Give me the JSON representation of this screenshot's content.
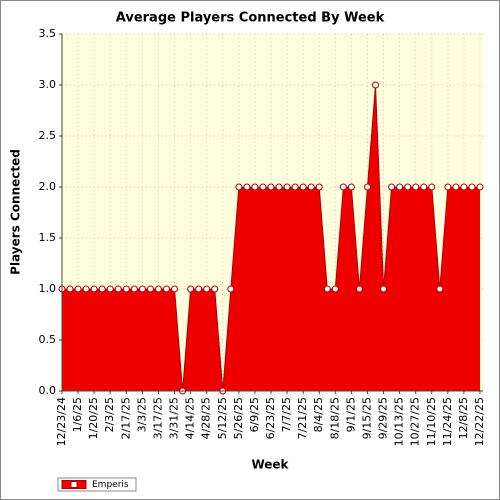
{
  "chart_data": {
    "type": "area",
    "title": "Average Players Connected By Week",
    "x_label": "Week",
    "y_label": "Players Connected",
    "categories": [
      "12/23/24",
      null,
      "1/6/25",
      null,
      "1/20/25",
      null,
      "2/3/25",
      null,
      "2/17/25",
      null,
      "3/3/25",
      null,
      "3/17/25",
      null,
      "3/31/25",
      null,
      "4/14/25",
      null,
      "4/28/25",
      null,
      "5/12/25",
      null,
      "5/26/25",
      null,
      "6/9/25",
      null,
      "6/23/25",
      null,
      "7/7/25",
      null,
      "7/21/25",
      null,
      "8/4/25",
      null,
      "8/18/25",
      null,
      "9/1/25",
      null,
      "9/15/25",
      null,
      "9/29/25",
      null,
      "10/13/25",
      null,
      "10/27/25",
      null,
      "11/10/25",
      null,
      "11/24/25",
      null,
      "12/8/25",
      null,
      "12/22/25"
    ],
    "series": [
      {
        "name": "Emperis",
        "color": "#ee0000",
        "values": [
          1,
          1,
          1,
          1,
          1,
          1,
          1,
          1,
          1,
          1,
          1,
          1,
          1,
          1,
          1,
          0,
          1,
          1,
          1,
          1,
          0,
          1,
          2,
          2,
          2,
          2,
          2,
          2,
          2,
          2,
          2,
          2,
          2,
          1,
          1,
          2,
          2,
          1,
          2,
          3,
          1,
          2,
          2,
          2,
          2,
          2,
          2,
          1,
          2,
          2,
          2,
          2,
          2
        ]
      }
    ],
    "ylim": [
      0,
      3.5
    ],
    "yticks": [
      {
        "value": 0,
        "label": "0.0"
      },
      0.5,
      {
        "value": 1,
        "label": "1.0"
      },
      1.5,
      {
        "value": 2,
        "label": "2.0"
      },
      2.5,
      {
        "value": 3,
        "label": "3.0"
      },
      3.5
    ],
    "grid": true,
    "legend": "bottom-left"
  }
}
